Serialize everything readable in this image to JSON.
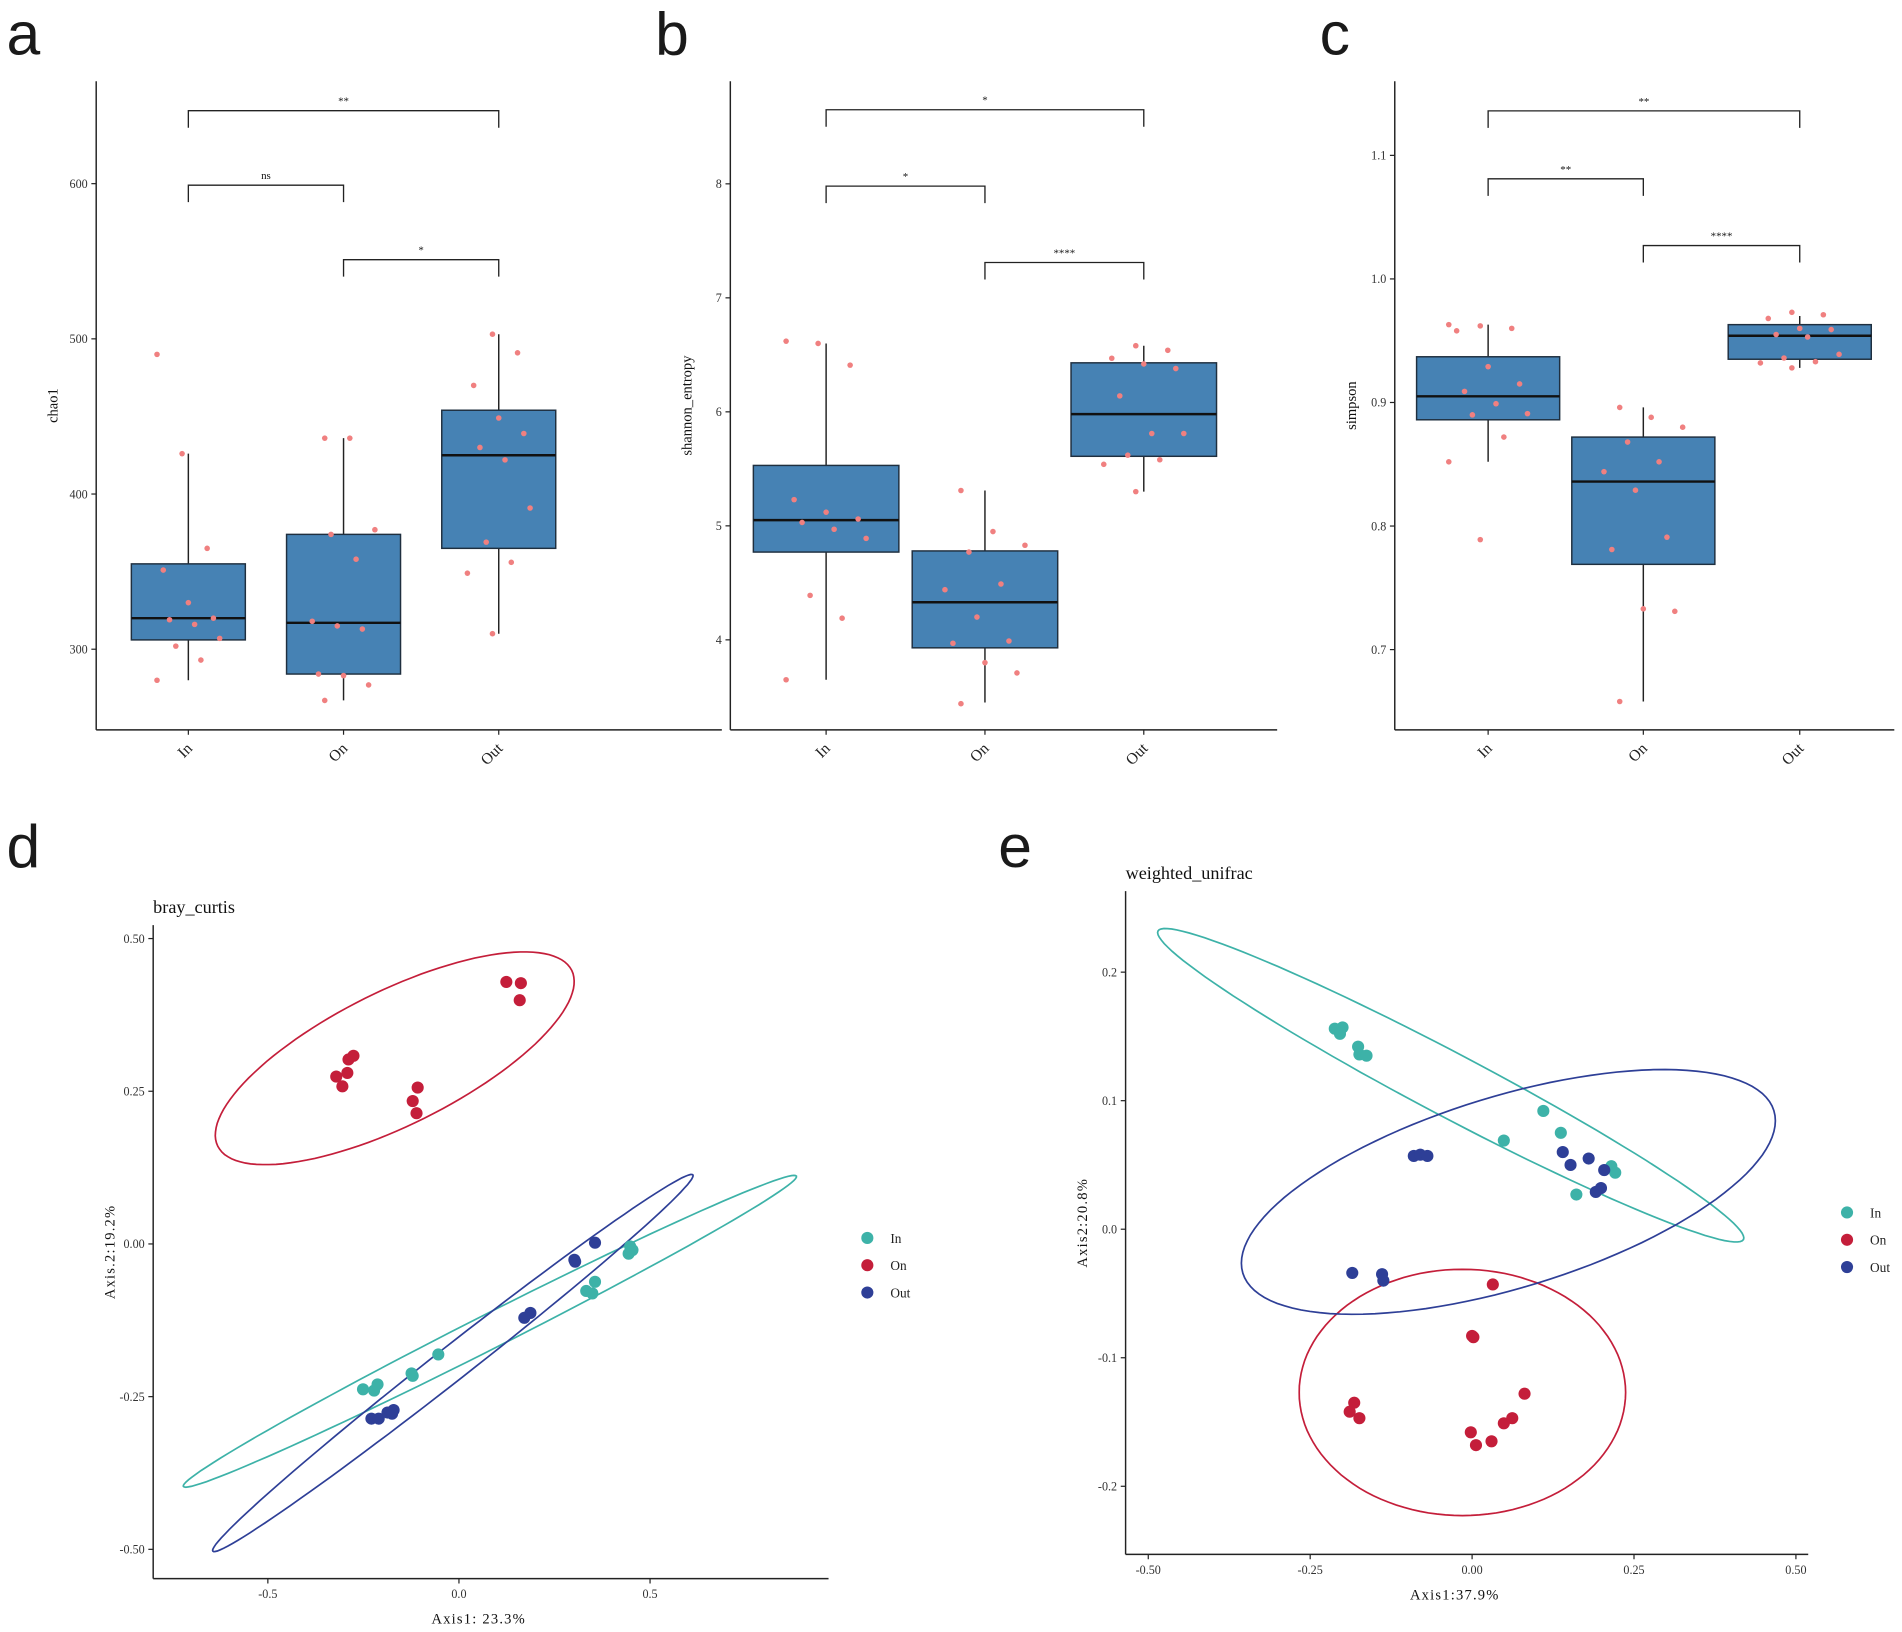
{
  "chart_data": [
    {
      "type": "box",
      "panel_label": "a",
      "ylabel": "chao1",
      "categories": [
        "In",
        "On",
        "Out"
      ],
      "ylim": [
        248,
        666
      ],
      "yticks": [
        300,
        400,
        500,
        600
      ],
      "ytick_labels": [
        "300",
        "400",
        "500",
        "600"
      ],
      "box_color": "#4682B4",
      "point_color": "#F08080",
      "boxes": [
        {
          "q1": 306,
          "median": 320,
          "q3": 355,
          "whisker_low": 280,
          "whisker_high": 426
        },
        {
          "q1": 284,
          "median": 317,
          "q3": 374,
          "whisker_low": 267,
          "whisker_high": 436
        },
        {
          "q1": 365,
          "median": 425,
          "q3": 454,
          "whisker_low": 310,
          "whisker_high": 503
        }
      ],
      "points": [
        [
          490,
          426,
          365,
          351,
          330,
          320,
          319,
          316,
          307,
          302,
          293,
          280
        ],
        [
          436,
          436,
          377,
          374,
          358,
          318,
          315,
          313,
          284,
          283,
          277,
          267
        ],
        [
          503,
          491,
          470,
          449,
          439,
          430,
          422,
          391,
          369,
          356,
          349,
          310
        ]
      ],
      "comparisons": [
        {
          "from": 0,
          "to": 2,
          "y": 647,
          "label": "**"
        },
        {
          "from": 0,
          "to": 1,
          "y": 599,
          "label": "ns"
        },
        {
          "from": 1,
          "to": 2,
          "y": 551,
          "label": "*"
        }
      ]
    },
    {
      "type": "box",
      "panel_label": "b",
      "ylabel": "shannon_entropy",
      "categories": [
        "In",
        "On",
        "Out"
      ],
      "ylim": [
        3.21,
        8.9
      ],
      "yticks": [
        4,
        5,
        6,
        7,
        8
      ],
      "ytick_labels": [
        "4",
        "5",
        "6",
        "7",
        "8"
      ],
      "box_color": "#4682B4",
      "point_color": "#F08080",
      "boxes": [
        {
          "q1": 4.77,
          "median": 5.05,
          "q3": 5.53,
          "whisker_low": 3.65,
          "whisker_high": 6.6
        },
        {
          "q1": 3.93,
          "median": 4.33,
          "q3": 4.78,
          "whisker_low": 3.45,
          "whisker_high": 5.31
        },
        {
          "q1": 5.61,
          "median": 5.98,
          "q3": 6.43,
          "whisker_low": 5.3,
          "whisker_high": 6.58
        }
      ],
      "points": [
        [
          6.62,
          6.6,
          6.41,
          5.23,
          5.12,
          5.06,
          5.03,
          4.97,
          4.89,
          4.39,
          4.19,
          3.65
        ],
        [
          5.31,
          4.95,
          4.83,
          4.77,
          4.49,
          4.44,
          4.2,
          3.99,
          3.97,
          3.8,
          3.71,
          3.44
        ],
        [
          6.58,
          6.54,
          6.47,
          6.42,
          6.38,
          6.14,
          5.81,
          5.81,
          5.62,
          5.58,
          5.54,
          5.3
        ]
      ],
      "comparisons": [
        {
          "from": 0,
          "to": 2,
          "y": 8.65,
          "label": "*"
        },
        {
          "from": 0,
          "to": 1,
          "y": 7.98,
          "label": "*"
        },
        {
          "from": 1,
          "to": 2,
          "y": 7.31,
          "label": "****"
        }
      ]
    },
    {
      "type": "box",
      "panel_label": "c",
      "ylabel": "simpson",
      "categories": [
        "In",
        "On",
        "Out"
      ],
      "ylim": [
        0.635,
        1.16
      ],
      "yticks": [
        0.7,
        0.8,
        0.9,
        1.0,
        1.1
      ],
      "ytick_labels": [
        "0.7",
        "0.8",
        "0.9",
        "1.0",
        "1.1"
      ],
      "box_color": "#4682B4",
      "point_color": "#F08080",
      "boxes": [
        {
          "q1": 0.886,
          "median": 0.905,
          "q3": 0.937,
          "whisker_low": 0.852,
          "whisker_high": 0.963
        },
        {
          "q1": 0.769,
          "median": 0.836,
          "q3": 0.872,
          "whisker_low": 0.658,
          "whisker_high": 0.896
        },
        {
          "q1": 0.935,
          "median": 0.954,
          "q3": 0.963,
          "whisker_low": 0.928,
          "whisker_high": 0.97
        }
      ],
      "points": [
        [
          0.963,
          0.962,
          0.96,
          0.958,
          0.929,
          0.915,
          0.909,
          0.899,
          0.891,
          0.89,
          0.872,
          0.852,
          0.789
        ],
        [
          0.896,
          0.888,
          0.88,
          0.868,
          0.852,
          0.844,
          0.829,
          0.791,
          0.781,
          0.733,
          0.731,
          0.658
        ],
        [
          0.973,
          0.971,
          0.968,
          0.96,
          0.959,
          0.955,
          0.953,
          0.939,
          0.936,
          0.933,
          0.932,
          0.928
        ]
      ],
      "comparisons": [
        {
          "from": 0,
          "to": 2,
          "y": 1.136,
          "label": "**"
        },
        {
          "from": 0,
          "to": 1,
          "y": 1.081,
          "label": "**"
        },
        {
          "from": 1,
          "to": 2,
          "y": 1.027,
          "label": "****"
        }
      ]
    },
    {
      "type": "scatter",
      "panel_label": "d",
      "title": "bray_curtis",
      "xlabel": "Axis1: 23.3%",
      "ylabel": "Axis.2:19.2%",
      "xlim": [
        -0.8,
        0.967
      ],
      "ylim": [
        -0.548,
        0.522
      ],
      "xticks": [
        -0.5,
        0.0,
        0.5
      ],
      "xtick_labels": [
        "-0.5",
        "0.0",
        "0.5"
      ],
      "yticks": [
        0.5,
        0.25,
        0.0,
        -0.25,
        -0.5
      ],
      "ytick_labels": [
        "0.50",
        "0.25",
        "0.00",
        "-0.25",
        "-0.50"
      ],
      "legend": "right",
      "series": [
        {
          "name": "In",
          "color": "#3DB2A8",
          "points": [
            [
              0.448,
              -0.004
            ],
            [
              0.454,
              -0.01
            ],
            [
              0.444,
              -0.016
            ],
            [
              0.356,
              -0.062
            ],
            [
              0.333,
              -0.077
            ],
            [
              0.349,
              -0.081
            ],
            [
              -0.054,
              -0.181
            ],
            [
              -0.124,
              -0.212
            ],
            [
              -0.121,
              -0.216
            ],
            [
              -0.251,
              -0.238
            ],
            [
              -0.222,
              -0.24
            ],
            [
              -0.213,
              -0.23
            ]
          ],
          "ellipse": {
            "center": [
              0.081,
              -0.143
            ],
            "a": [
              0.802,
              0.254
            ],
            "b": [
              0.02,
              -0.025
            ]
          }
        },
        {
          "name": "On",
          "color": "#C41E3A",
          "points": [
            [
              0.124,
              0.429
            ],
            [
              0.162,
              0.427
            ],
            [
              0.159,
              0.399
            ],
            [
              -0.321,
              0.274
            ],
            [
              -0.305,
              0.258
            ],
            [
              -0.292,
              0.28
            ],
            [
              -0.289,
              0.302
            ],
            [
              -0.276,
              0.308
            ],
            [
              -0.108,
              0.256
            ],
            [
              -0.121,
              0.234
            ],
            [
              -0.111,
              0.214
            ]
          ],
          "ellipse": {
            "center": [
              -0.168,
              0.304
            ],
            "a": [
              0.463,
              0.144
            ],
            "b": [
              0.078,
              -0.098
            ]
          }
        },
        {
          "name": "Out",
          "color": "#2E3F97",
          "points": [
            [
              0.356,
              0.002
            ],
            [
              0.302,
              -0.026
            ],
            [
              0.304,
              -0.029
            ],
            [
              0.187,
              -0.113
            ],
            [
              0.171,
              -0.121
            ],
            [
              -0.229,
              -0.286
            ],
            [
              -0.21,
              -0.286
            ],
            [
              -0.187,
              -0.276
            ],
            [
              -0.171,
              -0.272
            ],
            [
              -0.175,
              -0.278
            ]
          ],
          "ellipse": {
            "center": [
              -0.016,
              -0.195
            ],
            "a": [
              0.628,
              0.308
            ],
            "b": [
              0.027,
              -0.022
            ]
          }
        }
      ]
    },
    {
      "type": "scatter",
      "panel_label": "e",
      "title": "weighted_unifrac",
      "xlabel": "Axis1:37.9%",
      "ylabel": "Axis2:20.8%",
      "xlim": [
        -0.535,
        0.519
      ],
      "ylim": [
        -0.253,
        0.263
      ],
      "xticks": [
        -0.5,
        -0.25,
        0.0,
        0.25,
        0.5
      ],
      "xtick_labels": [
        "-0.50",
        "-0.25",
        "0.00",
        "0.25",
        "0.50"
      ],
      "yticks": [
        0.2,
        0.1,
        0.0,
        -0.1,
        -0.2
      ],
      "ytick_labels": [
        "0.2",
        "0.1",
        "0.0",
        "-0.1",
        "-0.2"
      ],
      "legend": "right",
      "series": [
        {
          "name": "In",
          "color": "#3DB2A8",
          "points": [
            [
              -0.212,
              0.156
            ],
            [
              -0.2,
              0.157
            ],
            [
              -0.204,
              0.152
            ],
            [
              -0.176,
              0.142
            ],
            [
              -0.174,
              0.136
            ],
            [
              -0.163,
              0.135
            ],
            [
              0.11,
              0.092
            ],
            [
              0.137,
              0.075
            ],
            [
              0.049,
              0.069
            ],
            [
              0.215,
              0.049
            ],
            [
              0.221,
              0.044
            ],
            [
              0.161,
              0.027
            ]
          ],
          "ellipse": {
            "center": [
              -0.033,
              0.112
            ],
            "a": [
              0.452,
              -0.12
            ],
            "b": [
              -0.0227,
              -0.0217
            ]
          }
        },
        {
          "name": "On",
          "color": "#C41E3A",
          "points": [
            [
              0.032,
              -0.043
            ],
            [
              0.0,
              -0.083
            ],
            [
              0.002,
              -0.084
            ],
            [
              0.081,
              -0.128
            ],
            [
              -0.189,
              -0.142
            ],
            [
              -0.182,
              -0.135
            ],
            [
              -0.174,
              -0.147
            ],
            [
              -0.002,
              -0.158
            ],
            [
              0.006,
              -0.168
            ],
            [
              0.03,
              -0.165
            ],
            [
              0.049,
              -0.151
            ],
            [
              0.062,
              -0.147
            ]
          ],
          "ellipse": {
            "center": [
              -0.015,
              -0.127
            ],
            "a": [
              0.252,
              0.0
            ],
            "b": [
              0.0,
              -0.0958
            ]
          }
        },
        {
          "name": "Out",
          "color": "#2E3F97",
          "points": [
            [
              -0.09,
              0.057
            ],
            [
              -0.08,
              0.058
            ],
            [
              -0.069,
              0.057
            ],
            [
              0.14,
              0.06
            ],
            [
              0.152,
              0.05
            ],
            [
              0.18,
              0.055
            ],
            [
              0.204,
              0.046
            ],
            [
              0.199,
              0.032
            ],
            [
              0.191,
              0.029
            ],
            [
              -0.185,
              -0.034
            ],
            [
              -0.139,
              -0.035
            ],
            [
              -0.137,
              -0.04
            ]
          ],
          "ellipse": {
            "center": [
              0.056,
              0.029
            ],
            "a": [
              0.41,
              0.0632
            ],
            "b": [
              0.0433,
              -0.0712
            ]
          }
        }
      ]
    }
  ]
}
